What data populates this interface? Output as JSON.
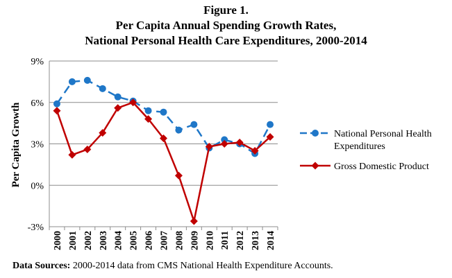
{
  "figure_label": "Figure 1.",
  "title_line_2": "Per Capita Annual Spending Growth Rates,",
  "title_line_3": "National Personal Health Care Expenditures, 2000-2014",
  "source_label": "Data Sources:",
  "source_text": " 2000-2014 data from CMS National Health Expenditure Accounts.",
  "colors": {
    "nphe": "#1f77c8",
    "gdp": "#c00000",
    "grid": "#8c8c8c",
    "axis": "#8c8c8c"
  },
  "chart_data": {
    "type": "line",
    "title": "Per Capita Annual Spending Growth Rates, National Personal Health Care Expenditures, 2000-2014",
    "xlabel": "",
    "ylabel": "Per Capita Growth",
    "ylim": [
      -3,
      9
    ],
    "yticks": [
      -3,
      0,
      3,
      6,
      9
    ],
    "ytick_labels": [
      "-3%",
      "0%",
      "3%",
      "6%",
      "9%"
    ],
    "grid": "horizontal",
    "legend_position": "right",
    "categories": [
      "2000",
      "2001",
      "2002",
      "2003",
      "2004",
      "2005",
      "2006",
      "2007",
      "2008",
      "2009",
      "2010",
      "2011",
      "2012",
      "2013",
      "2014"
    ],
    "series": [
      {
        "name": "National Personal Health Expenditures",
        "style": "dashed",
        "marker": "circle",
        "values": [
          5.9,
          7.5,
          7.6,
          7.0,
          6.4,
          6.1,
          5.4,
          5.3,
          4.0,
          4.4,
          2.7,
          3.3,
          3.0,
          2.3,
          4.4
        ]
      },
      {
        "name": "Gross Domestic Product",
        "style": "solid",
        "marker": "diamond",
        "values": [
          5.4,
          2.2,
          2.6,
          3.8,
          5.6,
          6.0,
          4.8,
          3.4,
          0.7,
          -2.6,
          2.8,
          3.0,
          3.1,
          2.5,
          3.5
        ]
      }
    ]
  }
}
